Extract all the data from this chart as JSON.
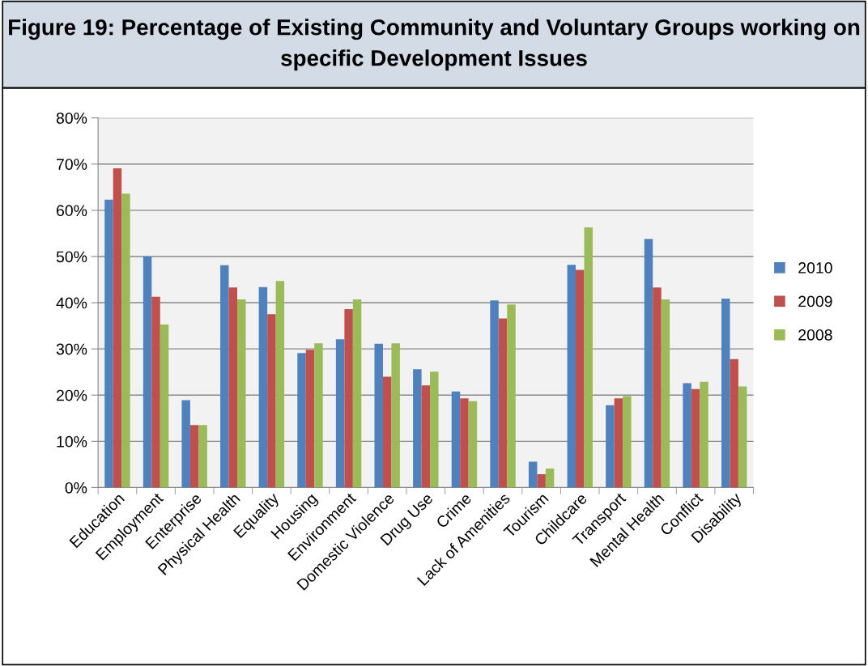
{
  "chart_data": {
    "type": "bar",
    "title": "Figure 19: Percentage of Existing Community and Voluntary Groups working on specific Development Issues",
    "categories": [
      "Education",
      "Employment",
      "Enterprise",
      "Physical Health",
      "Equality",
      "Housing",
      "Environment",
      "Domestic Violence",
      "Drug Use",
      "Crime",
      "Lack of Amenities",
      "Tourism",
      "Childcare",
      "Transport",
      "Mental Health",
      "Conflict",
      "Disability"
    ],
    "series": [
      {
        "name": "2010",
        "color": "#4f81bd",
        "values": [
          62.3,
          50.0,
          18.9,
          48.1,
          43.4,
          29.1,
          32.1,
          31.1,
          25.6,
          20.8,
          40.5,
          5.6,
          48.2,
          17.8,
          53.8,
          22.6,
          40.9
        ]
      },
      {
        "name": "2009",
        "color": "#c0504d",
        "values": [
          69.1,
          41.3,
          13.5,
          43.3,
          37.5,
          29.8,
          38.6,
          24.0,
          22.1,
          19.3,
          36.6,
          2.9,
          47.1,
          19.3,
          43.3,
          21.3,
          27.8
        ]
      },
      {
        "name": "2008",
        "color": "#9bbb59",
        "values": [
          63.6,
          35.3,
          13.5,
          40.7,
          44.7,
          31.2,
          40.7,
          31.2,
          25.1,
          18.7,
          39.6,
          4.1,
          56.3,
          19.8,
          40.7,
          22.9,
          21.9
        ]
      }
    ],
    "ylim": [
      0,
      80
    ],
    "yticks": [
      {
        "value": 0,
        "label": "0%"
      },
      {
        "value": 10,
        "label": "10%"
      },
      {
        "value": 20,
        "label": "20%"
      },
      {
        "value": 30,
        "label": "30%"
      },
      {
        "value": 40,
        "label": "40%"
      },
      {
        "value": 50,
        "label": "50%"
      },
      {
        "value": 60,
        "label": "60%"
      },
      {
        "value": 70,
        "label": "70%"
      },
      {
        "value": 80,
        "label": "80%"
      }
    ],
    "grid": "y",
    "legend": "right"
  }
}
